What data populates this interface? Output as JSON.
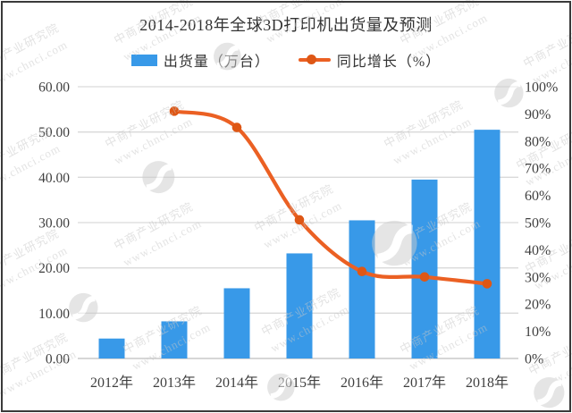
{
  "chart_data": {
    "type": "combo",
    "title": "2014-2018年全球3D打印机出货量及预测",
    "categories": [
      "2012年",
      "2013年",
      "2014年",
      "2015年",
      "2016年",
      "2017年",
      "2018年"
    ],
    "series": [
      {
        "name": "出货量（万台）",
        "type": "bar",
        "axis": "left",
        "color": "#3899e8",
        "values": [
          4.4,
          8.2,
          15.5,
          23.2,
          30.5,
          39.5,
          50.5
        ]
      },
      {
        "name": "同比增长（%）",
        "type": "line",
        "axis": "right",
        "color": "#eb6023",
        "marker_color": "#de5715",
        "values": [
          null,
          91,
          85,
          51,
          32,
          30,
          27.5
        ]
      }
    ],
    "left_axis": {
      "min": 0,
      "max": 60,
      "step": 10,
      "tick_labels": [
        "0.00",
        "10.00",
        "20.00",
        "30.00",
        "40.00",
        "50.00",
        "60.00"
      ]
    },
    "right_axis": {
      "min": 0,
      "max": 100,
      "step": 10,
      "tick_labels": [
        "0%",
        "10%",
        "20%",
        "30%",
        "40%",
        "50%",
        "60%",
        "70%",
        "80%",
        "90%",
        "100%"
      ]
    },
    "grid": true,
    "legend_position": "top",
    "gridline_color": "#d9d9d9",
    "baseline_color": "#bdbdbd"
  },
  "watermark": {
    "line1": "中商产业研究院",
    "line2": "www.chnci.com"
  }
}
